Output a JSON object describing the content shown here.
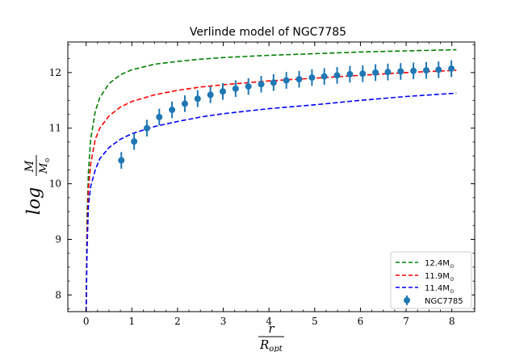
{
  "chart_data": {
    "type": "line",
    "title": "Verlinde model of NGC7785",
    "xlabel": {
      "numerator": "r",
      "denominator": "R",
      "subscript": "opt"
    },
    "ylabel": {
      "prefix": "log",
      "numerator": "M",
      "denominator": "M",
      "subscript": "⊙"
    },
    "xlim": [
      -0.4,
      8.5
    ],
    "ylim": [
      7.7,
      12.55
    ],
    "xticks": [
      0,
      1,
      2,
      3,
      4,
      5,
      6,
      7,
      8
    ],
    "yticks": [
      8,
      9,
      10,
      11,
      12
    ],
    "legend_position": "bottom-right",
    "series": [
      {
        "name": "12.4M",
        "sub": "⊙",
        "style": "dashed",
        "color": "#008000",
        "x": [
          0.0,
          0.02,
          0.05,
          0.1,
          0.2,
          0.3,
          0.5,
          0.75,
          1.0,
          1.5,
          2.0,
          2.5,
          3.0,
          4.0,
          5.0,
          6.0,
          7.0,
          8.1
        ],
        "y": [
          7.7,
          9.4,
          10.2,
          10.8,
          11.3,
          11.55,
          11.8,
          11.96,
          12.05,
          12.15,
          12.2,
          12.24,
          12.27,
          12.31,
          12.34,
          12.37,
          12.39,
          12.41
        ]
      },
      {
        "name": "11.9M",
        "sub": "⊙",
        "style": "dashed",
        "color": "#ff0000",
        "x": [
          0.0,
          0.02,
          0.05,
          0.1,
          0.2,
          0.3,
          0.5,
          0.75,
          1.0,
          1.5,
          2.0,
          2.5,
          3.0,
          4.0,
          5.0,
          6.0,
          7.0,
          8.1
        ],
        "y": [
          7.7,
          9.1,
          9.9,
          10.35,
          10.8,
          11.0,
          11.22,
          11.38,
          11.48,
          11.6,
          11.68,
          11.74,
          11.78,
          11.85,
          11.9,
          11.95,
          12.0,
          12.04
        ]
      },
      {
        "name": "11.4M",
        "sub": "⊙",
        "style": "dashed",
        "color": "#0000ff",
        "x": [
          0.0,
          0.02,
          0.05,
          0.1,
          0.2,
          0.3,
          0.5,
          0.75,
          1.0,
          1.5,
          2.0,
          2.5,
          3.0,
          4.0,
          5.0,
          6.0,
          7.0,
          8.1
        ],
        "y": [
          7.7,
          8.8,
          9.6,
          9.95,
          10.25,
          10.45,
          10.65,
          10.8,
          10.9,
          11.03,
          11.12,
          11.2,
          11.26,
          11.35,
          11.42,
          11.5,
          11.57,
          11.63
        ]
      }
    ],
    "points": {
      "name": "NGC7785",
      "color": "#1f77b4",
      "x": [
        0.77,
        1.05,
        1.33,
        1.6,
        1.88,
        2.16,
        2.44,
        2.72,
        2.99,
        3.27,
        3.55,
        3.83,
        4.1,
        4.38,
        4.66,
        4.94,
        5.21,
        5.49,
        5.77,
        6.05,
        6.33,
        6.6,
        6.88,
        7.16,
        7.44,
        7.71,
        7.99
      ],
      "y": [
        10.42,
        10.76,
        11.0,
        11.2,
        11.33,
        11.44,
        11.53,
        11.6,
        11.66,
        11.71,
        11.75,
        11.79,
        11.82,
        11.86,
        11.88,
        11.91,
        11.93,
        11.95,
        11.97,
        11.98,
        12.0,
        12.01,
        12.02,
        12.03,
        12.04,
        12.05,
        12.07
      ],
      "err": [
        0.15,
        0.15,
        0.15,
        0.15,
        0.15,
        0.15,
        0.15,
        0.15,
        0.15,
        0.15,
        0.15,
        0.15,
        0.15,
        0.15,
        0.15,
        0.15,
        0.15,
        0.15,
        0.15,
        0.15,
        0.15,
        0.15,
        0.15,
        0.15,
        0.15,
        0.15,
        0.15
      ]
    }
  }
}
